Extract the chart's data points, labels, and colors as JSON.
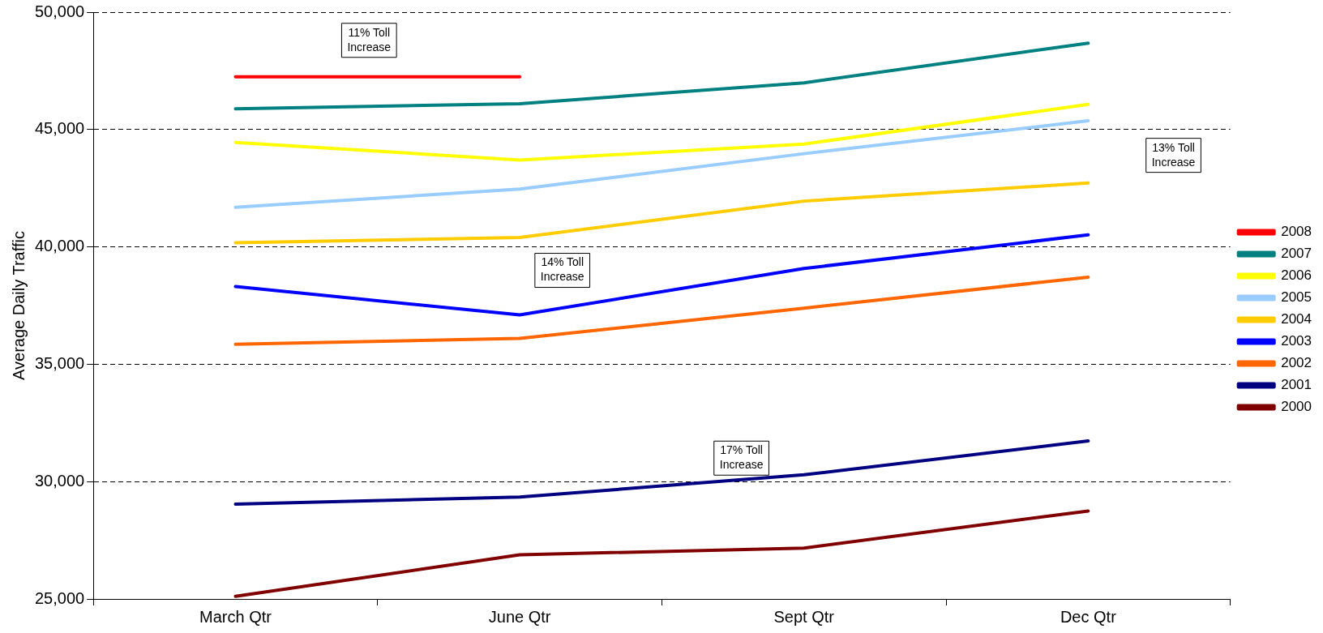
{
  "chart_data": {
    "type": "line",
    "ylabel": "Average Daily Traffic",
    "categories": [
      "March Qtr",
      "June Qtr",
      "Sept Qtr",
      "Dec Qtr"
    ],
    "ylim": [
      25000,
      50000
    ],
    "yticks": [
      {
        "value": 25000,
        "label": "25,000"
      },
      {
        "value": 30000,
        "label": "30,000"
      },
      {
        "value": 35000,
        "label": "35,000"
      },
      {
        "value": 40000,
        "label": "40,000"
      },
      {
        "value": 45000,
        "label": "45,000"
      },
      {
        "value": 50000,
        "label": "50,000"
      }
    ],
    "grid": "y",
    "legend": "right",
    "marker": "none",
    "line_style": "solid",
    "series": [
      {
        "name": "2008",
        "color": "#ff0000",
        "values": [
          47250,
          47250,
          null,
          null
        ]
      },
      {
        "name": "2007",
        "color": "#008080",
        "values": [
          45880,
          46100,
          46990,
          48680
        ]
      },
      {
        "name": "2006",
        "color": "#ffff00",
        "values": [
          44450,
          43700,
          44380,
          46070
        ]
      },
      {
        "name": "2005",
        "color": "#99ccff",
        "values": [
          41690,
          42460,
          43970,
          45370
        ]
      },
      {
        "name": "2004",
        "color": "#ffcc00",
        "values": [
          40180,
          40400,
          41950,
          42720
        ]
      },
      {
        "name": "2003",
        "color": "#0000ff",
        "values": [
          38310,
          37100,
          39080,
          40510
        ]
      },
      {
        "name": "2002",
        "color": "#ff6600",
        "values": [
          35850,
          36100,
          37390,
          38710
        ]
      },
      {
        "name": "2001",
        "color": "#000080",
        "values": [
          29040,
          29340,
          30290,
          31730
        ]
      },
      {
        "name": "2000",
        "color": "#800000",
        "values": [
          25110,
          26880,
          27170,
          28750
        ]
      }
    ],
    "annotations": [
      "11% Toll Increase",
      "13% Toll Increase",
      "14% Toll Increase",
      "17% Toll Increase"
    ]
  }
}
